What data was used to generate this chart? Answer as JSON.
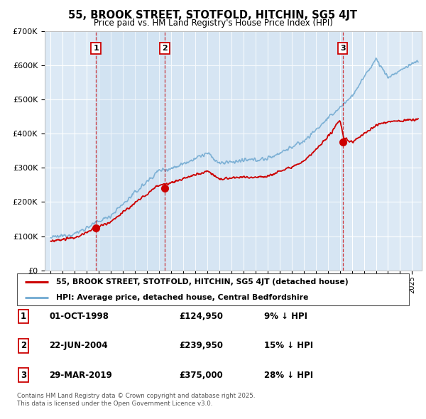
{
  "title": "55, BROOK STREET, STOTFOLD, HITCHIN, SG5 4JT",
  "subtitle": "Price paid vs. HM Land Registry's House Price Index (HPI)",
  "background_color": "#ffffff",
  "plot_bg_color": "#dce9f5",
  "grid_color": "#ffffff",
  "sale_line_color": "#cc0000",
  "hpi_line_color": "#7aafd4",
  "vline_color": "#cc0000",
  "sale_dates_num": [
    1998.75,
    2004.47,
    2019.24
  ],
  "sale_prices": [
    124950,
    239950,
    375000
  ],
  "sale_labels": [
    "1",
    "2",
    "3"
  ],
  "legend_sale_label": "55, BROOK STREET, STOTFOLD, HITCHIN, SG5 4JT (detached house)",
  "legend_hpi_label": "HPI: Average price, detached house, Central Bedfordshire",
  "table_entries": [
    {
      "num": "1",
      "date": "01-OCT-1998",
      "price": "£124,950",
      "pct": "9% ↓ HPI"
    },
    {
      "num": "2",
      "date": "22-JUN-2004",
      "price": "£239,950",
      "pct": "15% ↓ HPI"
    },
    {
      "num": "3",
      "date": "29-MAR-2019",
      "price": "£375,000",
      "pct": "28% ↓ HPI"
    }
  ],
  "footer": "Contains HM Land Registry data © Crown copyright and database right 2025.\nThis data is licensed under the Open Government Licence v3.0.",
  "ylim": [
    0,
    700000
  ],
  "xlim_start": 1994.5,
  "xlim_end": 2025.8
}
